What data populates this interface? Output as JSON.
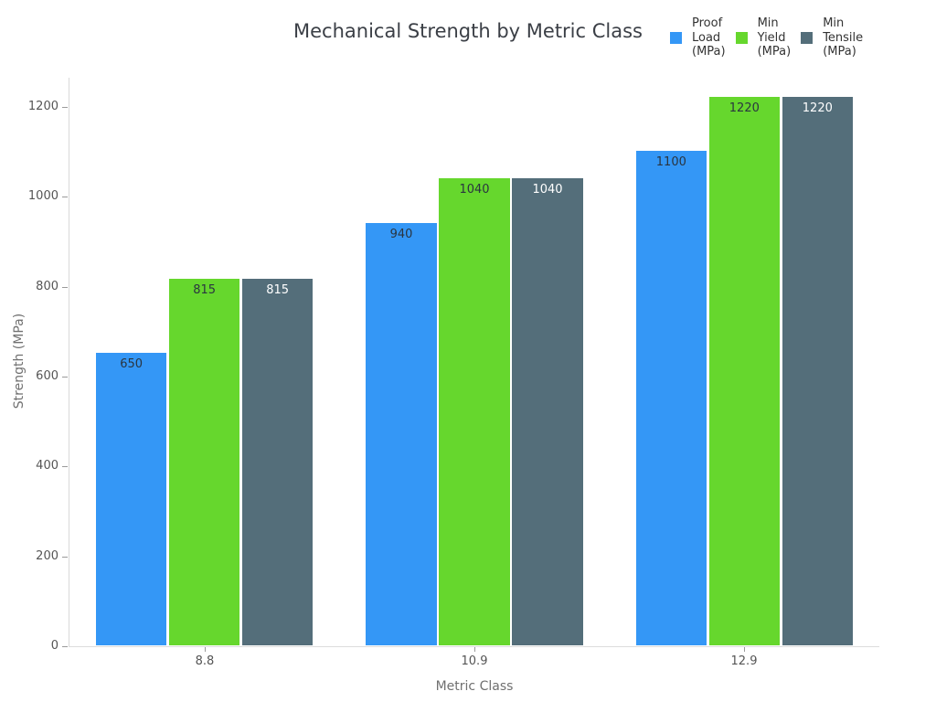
{
  "chart_data": {
    "type": "bar",
    "title": "Mechanical Strength by Metric Class",
    "xlabel": "Metric Class",
    "ylabel": "Strength (MPa)",
    "categories": [
      "8.8",
      "10.9",
      "12.9"
    ],
    "series": [
      {
        "name": "Proof Load (MPa)",
        "legend_lines": [
          "Proof",
          "Load",
          "(MPa)"
        ],
        "color": "#3497f6",
        "label_color": "#2a3540",
        "values": [
          650,
          940,
          1100
        ]
      },
      {
        "name": "Min Yield (MPa)",
        "legend_lines": [
          "Min",
          "Yield",
          "(MPa)"
        ],
        "color": "#66d72d",
        "label_color": "#2a3540",
        "values": [
          815,
          1040,
          1220
        ]
      },
      {
        "name": "Min Tensile (MPa)",
        "legend_lines": [
          "Min",
          "Tensile",
          "(MPa)"
        ],
        "color": "#546e7a",
        "label_color": "#ffffff",
        "values": [
          815,
          1040,
          1220
        ]
      }
    ],
    "yticks": [
      0,
      200,
      400,
      600,
      800,
      1000,
      1200
    ],
    "ylim": [
      0,
      1265
    ],
    "grid": false,
    "legend_position": "top-right",
    "value_labels": "inside-top"
  }
}
